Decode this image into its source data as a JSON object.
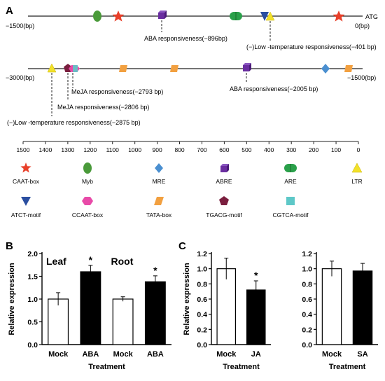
{
  "panels": {
    "a": "A",
    "b": "B",
    "c": "C"
  },
  "promoter": {
    "line1": {
      "start_label": "−1500(bp)",
      "end_label": "0(bp)",
      "end_tag": "ATG"
    },
    "line2": {
      "start_label": "−3000(bp)",
      "end_label": "−1500(bp)"
    }
  },
  "annotations": [
    {
      "text": "ABA responsiveness(−896bp)"
    },
    {
      "text": "(−)Low -temperature responsiveness(−401 bp)"
    },
    {
      "text": "MeJA responsiveness(−2793 bp)"
    },
    {
      "text": "MeJA responsiveness(−2806 bp)"
    },
    {
      "text": "ABA responsiveness(−2005 bp)"
    },
    {
      "text": "(−)Low -temperature responsiveness(−2875 bp)"
    }
  ],
  "scale": {
    "ticks": [
      "1500",
      "1400",
      "1300",
      "1200",
      "1100",
      "1000",
      "900",
      "800",
      "700",
      "600",
      "500",
      "400",
      "300",
      "200",
      "100",
      "0"
    ]
  },
  "legend": [
    {
      "name": "CAAT-box",
      "shape": "star-icon",
      "color": "#e8402a"
    },
    {
      "name": "Myb",
      "shape": "ellipse-icon",
      "color": "#4a9a3a"
    },
    {
      "name": "MRE",
      "shape": "diamond-icon",
      "color": "#4a8fd0"
    },
    {
      "name": "ABRE",
      "shape": "cube-icon",
      "color": "#6a2ea0"
    },
    {
      "name": "ARE",
      "shape": "capsule-icon",
      "color": "#2aa04a"
    },
    {
      "name": "LTR",
      "shape": "triangle-up-icon",
      "color": "#f2e12a"
    },
    {
      "name": "ATCT-motif",
      "shape": "triangle-down-icon",
      "color": "#2a4ea0"
    },
    {
      "name": "CCAAT-box",
      "shape": "hexagon-icon",
      "color": "#e84aa8"
    },
    {
      "name": "TATA-box",
      "shape": "parallelogram-icon",
      "color": "#f2a040"
    },
    {
      "name": "TGACG-motif",
      "shape": "pentagon-icon",
      "color": "#7a1e3e"
    },
    {
      "name": "CGTCA-motif",
      "shape": "square-icon",
      "color": "#5ec8c8"
    }
  ],
  "chart_data": [
    {
      "type": "bar",
      "panel": "B",
      "categories": [
        "Mock",
        "ABA",
        "Mock",
        "ABA"
      ],
      "groups": [
        "Leaf",
        "Root"
      ],
      "values": [
        1.0,
        1.6,
        1.0,
        1.38
      ],
      "errors": [
        0.14,
        0.14,
        0.05,
        0.13
      ],
      "fills": [
        "white",
        "black",
        "white",
        "black"
      ],
      "significance": [
        "",
        "*",
        "",
        "*"
      ],
      "xlabel": "Treatment",
      "ylabel": "Relative expression",
      "ylim": [
        0,
        2.0
      ],
      "yticks": [
        "0.0",
        "0.5",
        "1.0",
        "1.5",
        "2.0"
      ]
    },
    {
      "type": "bar",
      "panel": "C",
      "categories": [
        "Mock",
        "JA"
      ],
      "values": [
        1.0,
        0.72
      ],
      "errors": [
        0.14,
        0.12
      ],
      "fills": [
        "white",
        "black"
      ],
      "significance": [
        "",
        "*"
      ],
      "xlabel": "Treatment",
      "ylabel": "Relative expression",
      "ylim": [
        0,
        1.2
      ],
      "yticks": [
        "0.0",
        "0.2",
        "0.4",
        "0.6",
        "0.8",
        "1.0",
        "1.2"
      ]
    },
    {
      "type": "bar",
      "panel": "C",
      "categories": [
        "Mock",
        "SA"
      ],
      "values": [
        1.0,
        0.97
      ],
      "errors": [
        0.1,
        0.1
      ],
      "fills": [
        "white",
        "black"
      ],
      "significance": [
        "",
        ""
      ],
      "xlabel": "Treatment",
      "ylabel": "",
      "ylim": [
        0,
        1.2
      ],
      "yticks": [
        "0.0",
        "0.2",
        "0.4",
        "0.6",
        "0.8",
        "1.0",
        "1.2"
      ]
    }
  ]
}
